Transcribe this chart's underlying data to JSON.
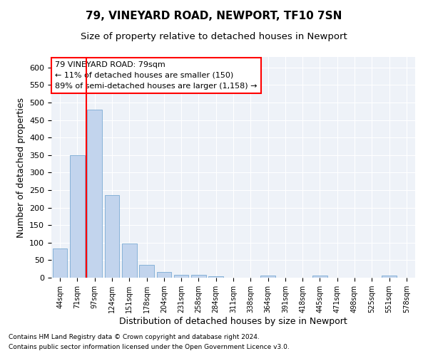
{
  "title1": "79, VINEYARD ROAD, NEWPORT, TF10 7SN",
  "title2": "Size of property relative to detached houses in Newport",
  "xlabel": "Distribution of detached houses by size in Newport",
  "ylabel": "Number of detached properties",
  "categories": [
    "44sqm",
    "71sqm",
    "97sqm",
    "124sqm",
    "151sqm",
    "178sqm",
    "204sqm",
    "231sqm",
    "258sqm",
    "284sqm",
    "311sqm",
    "338sqm",
    "364sqm",
    "391sqm",
    "418sqm",
    "445sqm",
    "471sqm",
    "498sqm",
    "525sqm",
    "551sqm",
    "578sqm"
  ],
  "values": [
    83,
    350,
    480,
    235,
    97,
    37,
    17,
    9,
    9,
    5,
    0,
    0,
    7,
    0,
    0,
    6,
    0,
    0,
    0,
    6,
    0
  ],
  "bar_color": "#c2d4ed",
  "bar_edge_color": "#7aaad4",
  "red_line_x": 1.5,
  "ylim": [
    0,
    630
  ],
  "yticks": [
    0,
    50,
    100,
    150,
    200,
    250,
    300,
    350,
    400,
    450,
    500,
    550,
    600
  ],
  "annotation_text": "79 VINEYARD ROAD: 79sqm\n← 11% of detached houses are smaller (150)\n89% of semi-detached houses are larger (1,158) →",
  "footnote1": "Contains HM Land Registry data © Crown copyright and database right 2024.",
  "footnote2": "Contains public sector information licensed under the Open Government Licence v3.0.",
  "title1_fontsize": 11,
  "title2_fontsize": 9.5,
  "xlabel_fontsize": 9,
  "ylabel_fontsize": 9,
  "annotation_fontsize": 8
}
